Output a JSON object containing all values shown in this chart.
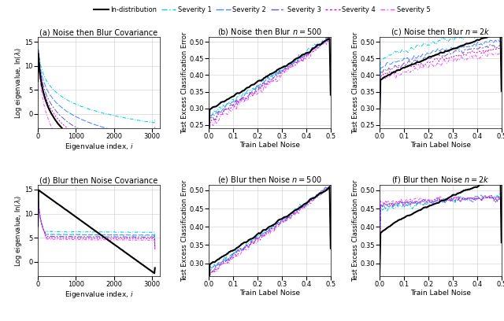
{
  "subplot_titles": [
    "(a) Noise then Blur Covariance",
    "(b) Noise then Blur $n = 500$",
    "(c) Noise then Blur $n = 2k$",
    "(d) Blur then Noise Covariance",
    "(e) Blur then Noise $n = 500$",
    "(f) Blur then Noise $n = 2k$"
  ],
  "ylabel_cov": "Log eigenvalue, $\\ln(\\lambda_i)$",
  "xlabel_cov": "Eigenvalue index, $i$",
  "ylabel_err": "Test Excess Classification Error",
  "xlabel_err": "Train Label Noise",
  "colors": {
    "indist": "#000000",
    "sev1": "#00ccee",
    "sev2": "#4488ff",
    "sev3": "#6655cc",
    "sev4": "#cc00cc",
    "sev5": "#ff44ff"
  }
}
